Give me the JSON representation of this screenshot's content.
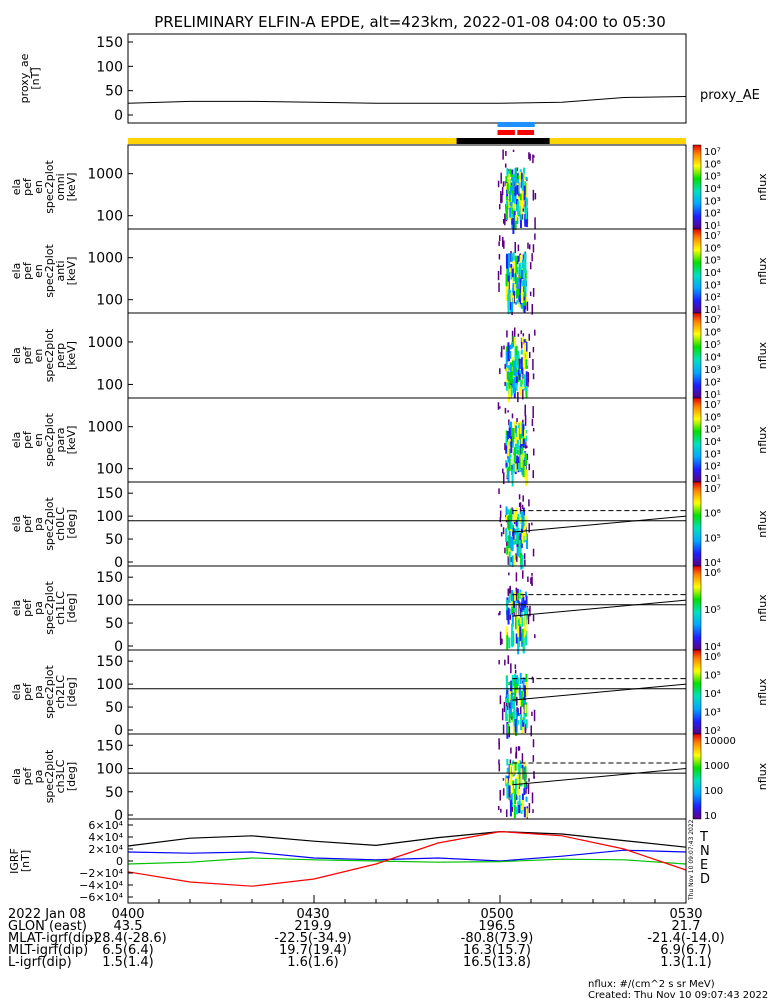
{
  "title": "PRELIMINARY ELFIN-A EPDE, alt=423km, 2022-01-08 04:00 to 05:30",
  "panels": [
    {
      "id": "proxy-ae",
      "ylabel_lines": [
        "proxy_ae",
        "[nT]"
      ],
      "ticks": [
        "150",
        "100",
        "50",
        "0"
      ],
      "right_label": "proxy_AE"
    },
    {
      "id": "omni",
      "ylabel_lines": [
        "ela",
        "pef",
        "en",
        "spec2plot",
        "omni",
        "[keV]"
      ],
      "ticks": [
        "1000",
        "100"
      ],
      "cbar_label": "nflux",
      "cbar_ticks": [
        "10⁷",
        "10⁶",
        "10⁵",
        "10⁴",
        "10³",
        "10²",
        "10¹"
      ]
    },
    {
      "id": "anti",
      "ylabel_lines": [
        "ela",
        "pef",
        "en",
        "spec2plot",
        "anti",
        "[keV]"
      ],
      "ticks": [
        "1000",
        "100"
      ],
      "cbar_label": "nflux",
      "cbar_ticks": [
        "10⁷",
        "10⁶",
        "10⁵",
        "10⁴",
        "10³",
        "10²",
        "10¹"
      ]
    },
    {
      "id": "perp",
      "ylabel_lines": [
        "ela",
        "pef",
        "en",
        "spec2plot",
        "perp",
        "[keV]"
      ],
      "ticks": [
        "1000",
        "100"
      ],
      "cbar_label": "nflux",
      "cbar_ticks": [
        "10⁷",
        "10⁶",
        "10⁵",
        "10⁴",
        "10³",
        "10²",
        "10¹"
      ]
    },
    {
      "id": "para",
      "ylabel_lines": [
        "ela",
        "pef",
        "en",
        "spec2plot",
        "para",
        "[keV]"
      ],
      "ticks": [
        "1000",
        "100"
      ],
      "cbar_label": "nflux",
      "cbar_ticks": [
        "10⁷",
        "10⁶",
        "10⁵",
        "10⁴",
        "10³",
        "10²",
        "10¹"
      ]
    },
    {
      "id": "ch0lc",
      "ylabel_lines": [
        "ela",
        "pef",
        "pa",
        "spec2plot",
        "ch0LC",
        "[deg]"
      ],
      "ticks": [
        "150",
        "100",
        "50",
        "0"
      ],
      "cbar_label": "nflux",
      "cbar_ticks": [
        "10⁷",
        "10⁶",
        "10⁵",
        "10⁴"
      ]
    },
    {
      "id": "ch1lc",
      "ylabel_lines": [
        "ela",
        "pef",
        "pa",
        "spec2plot",
        "ch1LC",
        "[deg]"
      ],
      "ticks": [
        "150",
        "100",
        "50",
        "0"
      ],
      "cbar_label": "nflux",
      "cbar_ticks": [
        "10⁶",
        "10⁵",
        "10⁴"
      ]
    },
    {
      "id": "ch2lc",
      "ylabel_lines": [
        "ela",
        "pef",
        "pa",
        "spec2plot",
        "ch2LC",
        "[deg]"
      ],
      "ticks": [
        "150",
        "100",
        "50",
        "0"
      ],
      "cbar_label": "nflux",
      "cbar_ticks": [
        "10⁶",
        "10⁵",
        "10⁴",
        "10³",
        "10²"
      ]
    },
    {
      "id": "ch3lc",
      "ylabel_lines": [
        "ela",
        "pef",
        "pa",
        "spec2plot",
        "ch3LC",
        "[deg]"
      ],
      "ticks": [
        "150",
        "100",
        "50",
        "0"
      ],
      "cbar_label": "nflux",
      "cbar_ticks": [
        "10000",
        "1000",
        "100",
        "10"
      ]
    },
    {
      "id": "igrf",
      "ylabel_lines": [
        "IGRF",
        "[nT]"
      ],
      "ticks": [
        "6×10⁴",
        "4×10⁴",
        "2×10⁴",
        "0",
        "−2×10⁴",
        "−4×10⁴",
        "−6×10⁴"
      ],
      "legend": [
        "T",
        "N",
        "E",
        "D"
      ]
    }
  ],
  "orbit_table": {
    "rows": [
      {
        "label": "2022 Jan 08",
        "values": [
          "0400",
          "0430",
          "0500",
          "0530"
        ]
      },
      {
        "label": "GLON (east)",
        "values": [
          "43.5",
          "219.9",
          "196.5",
          "21.7"
        ]
      },
      {
        "label": "MLAT-igrf(dip)",
        "values": [
          "-28.4(-28.6)",
          "-22.5(-34.9)",
          "-80.8(73.9)",
          "-21.4(-14.0)"
        ]
      },
      {
        "label": "MLT-igrf(dip)",
        "values": [
          "6.5(6.4)",
          "19.7(19.4)",
          "16.3(15.7)",
          "6.9(6.7)"
        ]
      },
      {
        "label": "L-igrf(dip)",
        "values": [
          "1.5(1.4)",
          "1.6(1.6)",
          "16.5(13.8)",
          "1.3(1.1)"
        ]
      }
    ]
  },
  "footer": {
    "units": "nflux: #/(cm^2 s sr MeV)",
    "created": "Created: Thu Nov 10 09:07:43 2022",
    "side_stamp": "Thu Nov 10 09:07:43 2022"
  },
  "colors": {
    "cyan_bar": "#1e90ff",
    "red_bar": "#ff0000",
    "yellow_bar": "#ffd400",
    "black_bar": "#000000",
    "igrf_T": "#000000",
    "igrf_N": "#0000ff",
    "igrf_E": "#00c000",
    "igrf_D": "#ff0000"
  },
  "chart_data": [
    {
      "type": "line",
      "title": "PRELIMINARY ELFIN-A EPDE, alt=423km, 2022-01-08 04:00 to 05:30",
      "ylabel": "proxy_ae [nT]",
      "ylim": [
        0,
        150
      ],
      "x_time": [
        "04:00",
        "04:10",
        "04:20",
        "04:30",
        "04:40",
        "04:50",
        "05:00",
        "05:10",
        "05:20",
        "05:30"
      ],
      "series": [
        {
          "name": "proxy_AE",
          "values": [
            24,
            28,
            28,
            26,
            24,
            24,
            24,
            26,
            36,
            38
          ]
        }
      ]
    },
    {
      "type": "line",
      "ylabel": "IGRF [nT]",
      "ylim": [
        -60000,
        60000
      ],
      "x_time": [
        "04:00",
        "04:10",
        "04:20",
        "04:30",
        "04:40",
        "04:50",
        "05:00",
        "05:10",
        "05:20",
        "05:30"
      ],
      "series": [
        {
          "name": "T",
          "values": [
            25000,
            38000,
            42000,
            33000,
            26000,
            39000,
            49000,
            45000,
            34000,
            23000
          ]
        },
        {
          "name": "N",
          "values": [
            15000,
            13000,
            15000,
            5000,
            2000,
            5000,
            0,
            8000,
            18000,
            15000
          ]
        },
        {
          "name": "E",
          "values": [
            -5000,
            -2000,
            5000,
            2000,
            0,
            -2000,
            -1000,
            3000,
            2000,
            -5000
          ]
        },
        {
          "name": "D",
          "values": [
            -18000,
            -35000,
            -42000,
            -30000,
            -5000,
            30000,
            49000,
            42000,
            20000,
            -15000
          ]
        }
      ]
    }
  ]
}
